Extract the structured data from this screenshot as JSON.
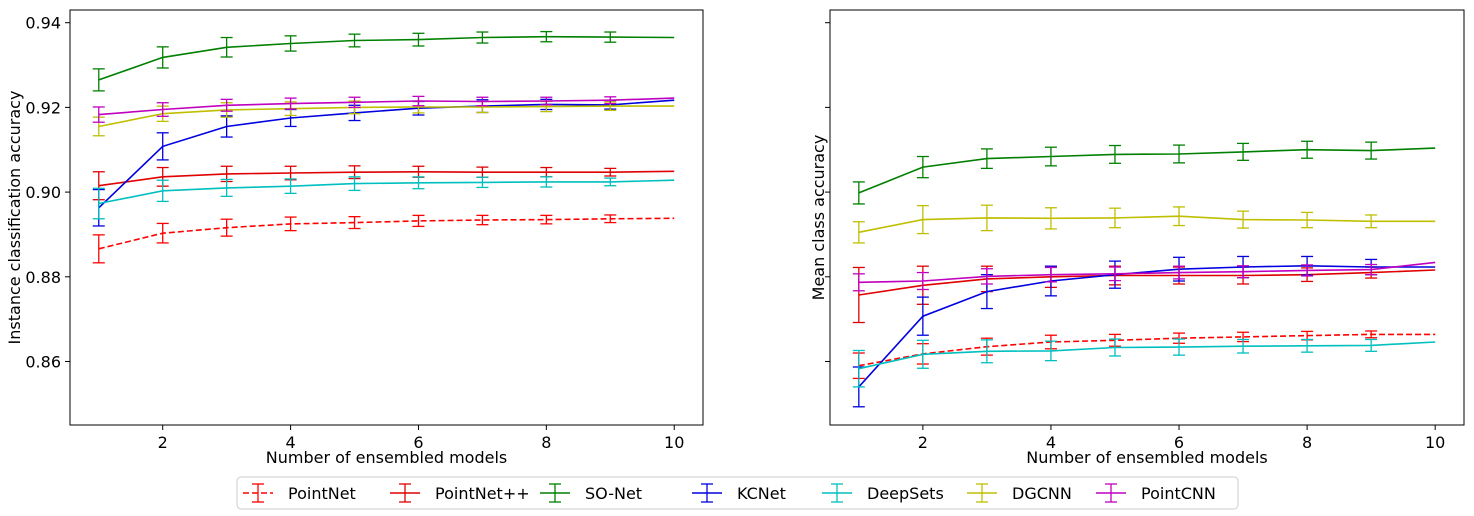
{
  "chart_data": [
    {
      "type": "line",
      "xlabel": "Number of ensembled models",
      "ylabel": "Instance classification accuracy",
      "xlim": [
        0.55,
        10.45
      ],
      "ylim": [
        0.845,
        0.943
      ],
      "xticks": [
        2,
        4,
        6,
        8,
        10
      ],
      "yticks": [
        0.86,
        0.88,
        0.9,
        0.92,
        0.94
      ],
      "ytick_labels": [
        "0.86",
        "0.88",
        "0.90",
        "0.92",
        "0.94"
      ],
      "show_ytick_labels": true,
      "grid": false,
      "x": [
        1,
        2,
        3,
        4,
        5,
        6,
        7,
        8,
        9,
        10
      ],
      "series": [
        {
          "name": "PointNet",
          "color": "#ff0000",
          "dashed": true,
          "values": [
            0.8866,
            0.8903,
            0.8916,
            0.8925,
            0.8928,
            0.8932,
            0.8934,
            0.8935,
            0.8937,
            0.8938
          ],
          "errors": [
            0.0033,
            0.0023,
            0.002,
            0.0016,
            0.0014,
            0.0013,
            0.0011,
            0.001,
            0.0009,
            0
          ]
        },
        {
          "name": "PointNet++",
          "color": "#e00000",
          "dashed": false,
          "values": [
            0.9015,
            0.9036,
            0.9043,
            0.9045,
            0.9047,
            0.9048,
            0.9047,
            0.9047,
            0.9047,
            0.9049
          ],
          "errors": [
            0.0033,
            0.0022,
            0.0018,
            0.0016,
            0.0015,
            0.0013,
            0.0012,
            0.0011,
            0.0009,
            0
          ]
        },
        {
          "name": "SO-Net",
          "color": "#008000",
          "dashed": false,
          "values": [
            0.9265,
            0.9318,
            0.9342,
            0.9351,
            0.9358,
            0.936,
            0.9365,
            0.9367,
            0.9366,
            0.9365
          ],
          "errors": [
            0.0026,
            0.0025,
            0.0023,
            0.0018,
            0.0015,
            0.0015,
            0.0013,
            0.0012,
            0.0012,
            0
          ]
        },
        {
          "name": "KCNet",
          "color": "#0000e0",
          "dashed": false,
          "values": [
            0.8963,
            0.9108,
            0.9155,
            0.9175,
            0.9187,
            0.9198,
            0.9203,
            0.9207,
            0.9206,
            0.9217
          ],
          "errors": [
            0.0043,
            0.0032,
            0.0025,
            0.002,
            0.0018,
            0.0016,
            0.0015,
            0.0012,
            0.001,
            0
          ]
        },
        {
          "name": "DeepSets",
          "color": "#00bfbf",
          "dashed": false,
          "values": [
            0.8973,
            0.9003,
            0.901,
            0.9014,
            0.902,
            0.9022,
            0.9023,
            0.9024,
            0.9024,
            0.9028
          ],
          "errors": [
            0.0036,
            0.0025,
            0.002,
            0.0017,
            0.0016,
            0.0014,
            0.0012,
            0.0012,
            0.0009,
            0
          ]
        },
        {
          "name": "DGCNN",
          "color": "#bfbf00",
          "dashed": false,
          "values": [
            0.9155,
            0.9185,
            0.9194,
            0.9197,
            0.92,
            0.9201,
            0.9201,
            0.9202,
            0.9203,
            0.9203
          ],
          "errors": [
            0.0022,
            0.0018,
            0.0017,
            0.0016,
            0.0015,
            0.0014,
            0.0013,
            0.0012,
            0.001,
            0
          ]
        },
        {
          "name": "PointCNN",
          "color": "#bf00bf",
          "dashed": false,
          "values": [
            0.9183,
            0.9195,
            0.9205,
            0.9209,
            0.9212,
            0.9215,
            0.9214,
            0.9215,
            0.9217,
            0.9222
          ],
          "errors": [
            0.0018,
            0.0016,
            0.0014,
            0.0013,
            0.0012,
            0.0011,
            0.001,
            0.0009,
            0.0008,
            0
          ]
        }
      ]
    },
    {
      "type": "line",
      "xlabel": "Number of ensembled models",
      "ylabel": "Mean class accuracy",
      "xlim": [
        0.55,
        10.45
      ],
      "ylim": [
        0.845,
        0.943
      ],
      "xticks": [
        2,
        4,
        6,
        8,
        10
      ],
      "yticks": [
        0.86,
        0.88,
        0.9,
        0.92,
        0.94
      ],
      "show_ytick_labels": false,
      "grid": false,
      "x": [
        1,
        2,
        3,
        4,
        5,
        6,
        7,
        8,
        9,
        10
      ],
      "series": [
        {
          "name": "PointNet",
          "color": "#ff0000",
          "dashed": true,
          "values": [
            0.859,
            0.8618,
            0.8635,
            0.8646,
            0.865,
            0.8655,
            0.8658,
            0.8661,
            0.8664,
            0.8664
          ],
          "errors": [
            0.003,
            0.0024,
            0.002,
            0.0016,
            0.0014,
            0.0012,
            0.0011,
            0.001,
            0.0008,
            0
          ]
        },
        {
          "name": "PointNet++",
          "color": "#e00000",
          "dashed": false,
          "values": [
            0.8757,
            0.878,
            0.8795,
            0.88,
            0.8803,
            0.8803,
            0.8803,
            0.8805,
            0.881,
            0.8816
          ],
          "errors": [
            0.0065,
            0.0045,
            0.003,
            0.0025,
            0.0022,
            0.002,
            0.002,
            0.0016,
            0.0013,
            0
          ]
        },
        {
          "name": "SO-Net",
          "color": "#008000",
          "dashed": false,
          "values": [
            0.8998,
            0.9059,
            0.9079,
            0.9084,
            0.9089,
            0.909,
            0.9095,
            0.91,
            0.9098,
            0.9104
          ],
          "errors": [
            0.0026,
            0.0025,
            0.0023,
            0.0022,
            0.0021,
            0.0021,
            0.002,
            0.002,
            0.002,
            0
          ]
        },
        {
          "name": "KCNet",
          "color": "#0000e0",
          "dashed": false,
          "values": [
            0.854,
            0.8707,
            0.8765,
            0.879,
            0.8805,
            0.8818,
            0.8823,
            0.8826,
            0.8823,
            0.8823
          ],
          "errors": [
            0.0047,
            0.0045,
            0.004,
            0.0035,
            0.0032,
            0.0028,
            0.0025,
            0.0022,
            0.0018,
            0
          ]
        },
        {
          "name": "DeepSets",
          "color": "#00bfbf",
          "dashed": false,
          "values": [
            0.8583,
            0.8617,
            0.8624,
            0.8625,
            0.8633,
            0.8634,
            0.8636,
            0.8637,
            0.8638,
            0.8646
          ],
          "errors": [
            0.0043,
            0.0033,
            0.0027,
            0.0023,
            0.002,
            0.0019,
            0.0016,
            0.0015,
            0.0014,
            0
          ]
        },
        {
          "name": "DGCNN",
          "color": "#bfbf00",
          "dashed": false,
          "values": [
            0.8905,
            0.8935,
            0.8939,
            0.8938,
            0.8939,
            0.8943,
            0.8935,
            0.8934,
            0.8931,
            0.8931
          ],
          "errors": [
            0.0025,
            0.0033,
            0.003,
            0.0025,
            0.0023,
            0.0022,
            0.002,
            0.0018,
            0.0015,
            0
          ]
        },
        {
          "name": "PointCNN",
          "color": "#bf00bf",
          "dashed": false,
          "values": [
            0.8787,
            0.879,
            0.8801,
            0.8805,
            0.8807,
            0.881,
            0.8812,
            0.8815,
            0.8817,
            0.8834
          ],
          "errors": [
            0.002,
            0.002,
            0.0018,
            0.0017,
            0.0016,
            0.0015,
            0.0014,
            0.0013,
            0.0012,
            0
          ]
        }
      ]
    }
  ],
  "legend": {
    "placement": "bottom-center",
    "entries": [
      "PointNet",
      "PointNet++",
      "SO-Net",
      "KCNet",
      "DeepSets",
      "DGCNN",
      "PointCNN"
    ]
  }
}
